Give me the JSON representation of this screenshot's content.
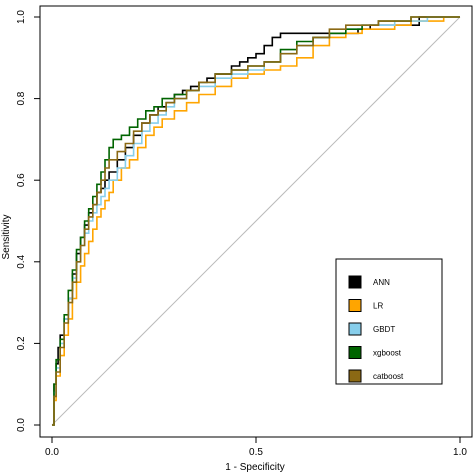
{
  "chart_data": {
    "type": "line",
    "title": "",
    "xlabel": "1 - Specificity",
    "ylabel": "Sensitivity",
    "xlim": [
      0,
      1
    ],
    "ylim": [
      0,
      1
    ],
    "x_ticks": [
      "0.0",
      "0.5",
      "1.0"
    ],
    "y_ticks": [
      "0.0",
      "0.2",
      "0.4",
      "0.6",
      "0.8",
      "1.0"
    ],
    "grid": false,
    "legend_position": "right",
    "reference_line": {
      "x": [
        0,
        1
      ],
      "y": [
        0,
        1
      ],
      "color": "#bbbbbb"
    },
    "series": [
      {
        "name": "ANN",
        "color": "#000000",
        "x": [
          0,
          0.005,
          0.01,
          0.015,
          0.02,
          0.03,
          0.04,
          0.05,
          0.06,
          0.07,
          0.08,
          0.09,
          0.1,
          0.11,
          0.12,
          0.13,
          0.14,
          0.16,
          0.18,
          0.2,
          0.22,
          0.24,
          0.26,
          0.28,
          0.3,
          0.32,
          0.34,
          0.36,
          0.38,
          0.4,
          0.42,
          0.44,
          0.46,
          0.48,
          0.5,
          0.52,
          0.54,
          0.56,
          0.6,
          0.65,
          0.7,
          0.75,
          0.78,
          0.8,
          0.85,
          0.9,
          0.95,
          1
        ],
        "y": [
          0,
          0.1,
          0.15,
          0.19,
          0.22,
          0.26,
          0.31,
          0.37,
          0.42,
          0.46,
          0.49,
          0.52,
          0.54,
          0.57,
          0.58,
          0.6,
          0.62,
          0.65,
          0.68,
          0.71,
          0.74,
          0.76,
          0.78,
          0.79,
          0.81,
          0.82,
          0.83,
          0.84,
          0.85,
          0.86,
          0.86,
          0.88,
          0.89,
          0.9,
          0.91,
          0.93,
          0.95,
          0.96,
          0.96,
          0.96,
          0.96,
          0.97,
          0.98,
          0.98,
          0.98,
          1,
          1,
          1
        ]
      },
      {
        "name": "LR",
        "color": "#ffa500",
        "x": [
          0,
          0.005,
          0.01,
          0.02,
          0.03,
          0.04,
          0.05,
          0.06,
          0.07,
          0.08,
          0.09,
          0.1,
          0.11,
          0.12,
          0.13,
          0.14,
          0.15,
          0.17,
          0.19,
          0.21,
          0.23,
          0.25,
          0.27,
          0.3,
          0.33,
          0.36,
          0.4,
          0.44,
          0.48,
          0.52,
          0.56,
          0.6,
          0.64,
          0.68,
          0.72,
          0.76,
          0.8,
          0.84,
          0.88,
          0.92,
          0.96,
          1
        ],
        "y": [
          0,
          0.06,
          0.12,
          0.17,
          0.22,
          0.26,
          0.31,
          0.35,
          0.39,
          0.42,
          0.45,
          0.48,
          0.51,
          0.53,
          0.55,
          0.57,
          0.6,
          0.63,
          0.65,
          0.68,
          0.71,
          0.73,
          0.75,
          0.77,
          0.79,
          0.81,
          0.83,
          0.85,
          0.86,
          0.87,
          0.88,
          0.9,
          0.93,
          0.95,
          0.96,
          0.97,
          0.97,
          0.98,
          0.99,
          0.99,
          1,
          1
        ]
      },
      {
        "name": "GBDT",
        "color": "#87ceeb",
        "x": [
          0,
          0.005,
          0.01,
          0.02,
          0.03,
          0.04,
          0.05,
          0.06,
          0.07,
          0.08,
          0.09,
          0.1,
          0.11,
          0.12,
          0.13,
          0.14,
          0.16,
          0.18,
          0.2,
          0.22,
          0.24,
          0.26,
          0.28,
          0.3,
          0.33,
          0.36,
          0.4,
          0.44,
          0.48,
          0.52,
          0.56,
          0.6,
          0.64,
          0.68,
          0.72,
          0.76,
          0.8,
          0.84,
          0.88,
          0.92,
          0.96,
          1
        ],
        "y": [
          0,
          0.08,
          0.14,
          0.2,
          0.26,
          0.31,
          0.36,
          0.4,
          0.44,
          0.47,
          0.5,
          0.52,
          0.54,
          0.56,
          0.58,
          0.6,
          0.63,
          0.66,
          0.69,
          0.72,
          0.74,
          0.76,
          0.78,
          0.8,
          0.82,
          0.83,
          0.85,
          0.86,
          0.87,
          0.89,
          0.91,
          0.93,
          0.95,
          0.96,
          0.97,
          0.98,
          0.98,
          0.99,
          0.99,
          1,
          1,
          1
        ]
      },
      {
        "name": "xgboost",
        "color": "#006400",
        "x": [
          0,
          0.005,
          0.01,
          0.02,
          0.03,
          0.04,
          0.05,
          0.06,
          0.07,
          0.08,
          0.09,
          0.1,
          0.11,
          0.12,
          0.13,
          0.14,
          0.15,
          0.17,
          0.19,
          0.21,
          0.23,
          0.25,
          0.27,
          0.3,
          0.33,
          0.36,
          0.4,
          0.44,
          0.48,
          0.52,
          0.56,
          0.6,
          0.64,
          0.68,
          0.72,
          0.76,
          0.8,
          0.84,
          0.88,
          0.92,
          0.96,
          1
        ],
        "y": [
          0,
          0.1,
          0.16,
          0.21,
          0.27,
          0.33,
          0.38,
          0.43,
          0.46,
          0.5,
          0.53,
          0.56,
          0.59,
          0.62,
          0.65,
          0.68,
          0.7,
          0.71,
          0.73,
          0.75,
          0.77,
          0.78,
          0.8,
          0.81,
          0.82,
          0.84,
          0.86,
          0.87,
          0.88,
          0.89,
          0.92,
          0.94,
          0.95,
          0.96,
          0.97,
          0.98,
          0.99,
          0.99,
          1,
          1,
          1,
          1
        ]
      },
      {
        "name": "catboost",
        "color": "#8b6914",
        "x": [
          0,
          0.005,
          0.01,
          0.02,
          0.03,
          0.04,
          0.05,
          0.06,
          0.07,
          0.08,
          0.09,
          0.1,
          0.11,
          0.12,
          0.13,
          0.14,
          0.16,
          0.18,
          0.2,
          0.22,
          0.24,
          0.26,
          0.28,
          0.3,
          0.33,
          0.36,
          0.4,
          0.44,
          0.48,
          0.52,
          0.56,
          0.6,
          0.64,
          0.68,
          0.72,
          0.76,
          0.8,
          0.84,
          0.88,
          0.92,
          0.96,
          1
        ],
        "y": [
          0,
          0.07,
          0.13,
          0.19,
          0.25,
          0.3,
          0.35,
          0.4,
          0.44,
          0.48,
          0.51,
          0.54,
          0.57,
          0.6,
          0.63,
          0.65,
          0.67,
          0.69,
          0.72,
          0.74,
          0.76,
          0.77,
          0.79,
          0.8,
          0.82,
          0.84,
          0.86,
          0.87,
          0.88,
          0.89,
          0.91,
          0.93,
          0.95,
          0.97,
          0.98,
          0.98,
          0.99,
          0.99,
          1,
          1,
          1,
          1
        ]
      }
    ]
  }
}
